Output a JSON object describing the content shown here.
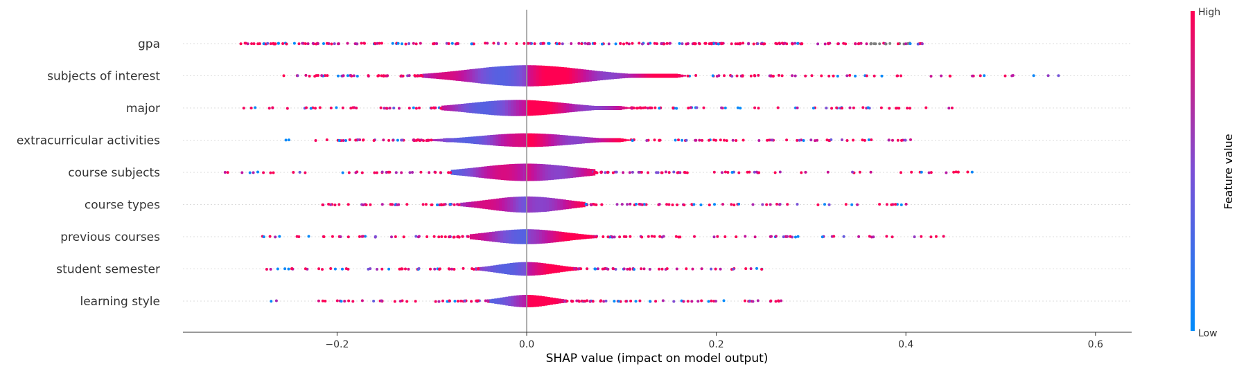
{
  "chart_data": {
    "type": "scatter",
    "variant": "shap-violin-summary",
    "title": "",
    "xlabel": "SHAP value (impact on model output)",
    "ylabel": "",
    "xlim": [
      -0.37,
      0.64
    ],
    "xticks": [
      -0.2,
      0.0,
      0.2,
      0.4,
      0.6
    ],
    "xtick_labels": [
      "−0.2",
      "0.0",
      "0.2",
      "0.4",
      "0.6"
    ],
    "grid": false,
    "colorbar": {
      "title": "Feature value",
      "high_label": "High",
      "low_label": "Low",
      "high_color": "#ff0052",
      "low_color": "#008bfb"
    },
    "features": [
      {
        "name": "gpa",
        "range": [
          -0.31,
          0.42
        ],
        "core": [
          -0.2,
          0.42
        ],
        "peak": 0.0,
        "width": 0.03,
        "spread": 0.0,
        "scatter_color": true
      },
      {
        "name": "subjects of interest",
        "range": [
          -0.26,
          0.59
        ],
        "core": [
          -0.11,
          0.17
        ],
        "peak": 0.0,
        "width": 0.85,
        "spread": 0.06
      },
      {
        "name": "major",
        "range": [
          -0.3,
          0.45
        ],
        "core": [
          -0.09,
          0.11
        ],
        "peak": -0.01,
        "width": 0.65,
        "spread": 0.05
      },
      {
        "name": "extracurricular activities",
        "range": [
          -0.26,
          0.41
        ],
        "core": [
          -0.1,
          0.11
        ],
        "peak": 0.0,
        "width": 0.55,
        "spread": 0.05
      },
      {
        "name": "course subjects",
        "range": [
          -0.32,
          0.47
        ],
        "core": [
          -0.08,
          0.07
        ],
        "peak": 0.0,
        "width": 0.7,
        "spread": 0.05
      },
      {
        "name": "course types",
        "range": [
          -0.23,
          0.41
        ],
        "core": [
          -0.07,
          0.06
        ],
        "peak": 0.0,
        "width": 0.65,
        "spread": 0.04
      },
      {
        "name": "previous courses",
        "range": [
          -0.28,
          0.44
        ],
        "core": [
          -0.06,
          0.07
        ],
        "peak": 0.0,
        "width": 0.6,
        "spread": 0.04
      },
      {
        "name": "student semester",
        "range": [
          -0.28,
          0.26
        ],
        "core": [
          -0.05,
          0.05
        ],
        "peak": 0.0,
        "width": 0.55,
        "spread": 0.03
      },
      {
        "name": "learning style",
        "range": [
          -0.27,
          0.27
        ],
        "core": [
          -0.04,
          0.04
        ],
        "peak": 0.0,
        "width": 0.5,
        "spread": 0.025
      }
    ]
  }
}
